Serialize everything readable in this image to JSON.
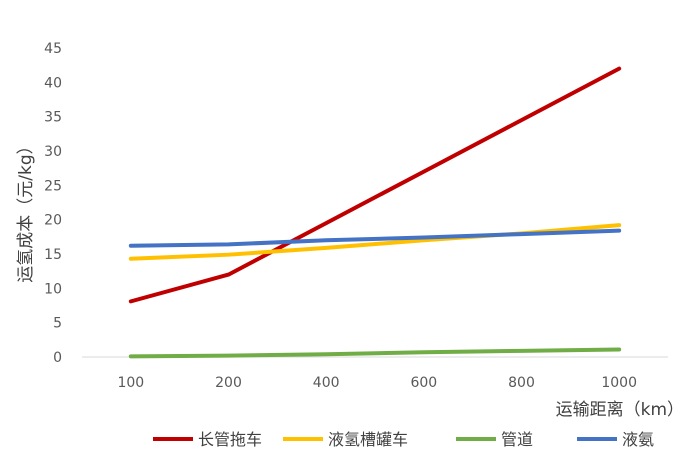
{
  "chart_data": {
    "type": "line",
    "title": "",
    "xlabel": "运输距离（km）",
    "ylabel": "运氢成本（元/kg）",
    "categories": [
      "100",
      "200",
      "400",
      "600",
      "800",
      "1000"
    ],
    "ylim": [
      0,
      45
    ],
    "yticks": [
      0,
      5,
      10,
      15,
      20,
      25,
      30,
      35,
      40,
      45
    ],
    "grid": false,
    "legend_position": "bottom",
    "series": [
      {
        "name": "长管拖车",
        "color": "#C00000",
        "values": [
          8.1,
          12.0,
          19.5,
          27.0,
          34.5,
          42.0
        ]
      },
      {
        "name": "液氢槽罐车",
        "color": "#FFC000",
        "values": [
          14.3,
          14.9,
          15.9,
          17.0,
          18.0,
          19.2
        ]
      },
      {
        "name": "管道",
        "color": "#70AD47",
        "values": [
          0.1,
          0.2,
          0.4,
          0.7,
          0.9,
          1.1
        ]
      },
      {
        "name": "液氨",
        "color": "#4472C4",
        "values": [
          16.2,
          16.4,
          17.0,
          17.4,
          17.9,
          18.4
        ]
      }
    ]
  }
}
